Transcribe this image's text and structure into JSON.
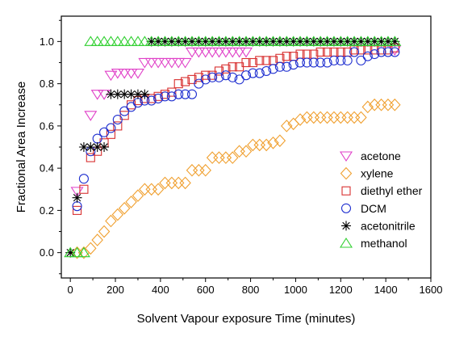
{
  "chart_data": {
    "type": "scatter",
    "title": "",
    "xlabel": "Solvent Vapour exposure Time (minutes)",
    "ylabel": "Fractional Area Increase",
    "xlim": [
      -40,
      1600
    ],
    "ylim": [
      -0.12,
      1.12
    ],
    "x_ticks": [
      0,
      200,
      400,
      600,
      800,
      1000,
      1200,
      1400,
      1600
    ],
    "y_ticks": [
      0.0,
      0.2,
      0.4,
      0.6,
      0.8,
      1.0
    ],
    "x_tick_labels": [
      "0",
      "200",
      "400",
      "600",
      "800",
      "1000",
      "1200",
      "1400",
      "1600"
    ],
    "y_tick_labels": [
      "0.0",
      "0.2",
      "0.4",
      "0.6",
      "0.8",
      "1.0"
    ],
    "grid": false,
    "legend_position": "right",
    "series": [
      {
        "name": "acetone",
        "marker": "triangle-down",
        "color": "#e040c8",
        "points": [
          [
            30,
            0.29
          ],
          [
            90,
            0.65
          ],
          [
            120,
            0.75
          ],
          [
            150,
            0.75
          ],
          [
            180,
            0.84
          ],
          [
            210,
            0.85
          ],
          [
            240,
            0.85
          ],
          [
            270,
            0.85
          ],
          [
            300,
            0.85
          ],
          [
            330,
            0.9
          ],
          [
            360,
            0.9
          ],
          [
            390,
            0.9
          ],
          [
            420,
            0.9
          ],
          [
            450,
            0.9
          ],
          [
            480,
            0.9
          ],
          [
            510,
            0.9
          ],
          [
            540,
            0.95
          ],
          [
            570,
            0.95
          ],
          [
            600,
            0.95
          ],
          [
            630,
            0.95
          ],
          [
            660,
            0.95
          ],
          [
            690,
            0.95
          ],
          [
            720,
            0.95
          ],
          [
            750,
            0.95
          ],
          [
            780,
            0.95
          ],
          [
            1440,
            0.96
          ]
        ]
      },
      {
        "name": "xylene",
        "marker": "diamond",
        "color": "#f0a030",
        "points": [
          [
            30,
            0.0
          ],
          [
            60,
            0.0
          ],
          [
            90,
            0.02
          ],
          [
            120,
            0.06
          ],
          [
            150,
            0.1
          ],
          [
            180,
            0.15
          ],
          [
            210,
            0.18
          ],
          [
            240,
            0.21
          ],
          [
            270,
            0.24
          ],
          [
            300,
            0.27
          ],
          [
            330,
            0.3
          ],
          [
            360,
            0.3
          ],
          [
            390,
            0.3
          ],
          [
            420,
            0.33
          ],
          [
            450,
            0.33
          ],
          [
            480,
            0.33
          ],
          [
            510,
            0.33
          ],
          [
            540,
            0.39
          ],
          [
            570,
            0.39
          ],
          [
            600,
            0.39
          ],
          [
            630,
            0.45
          ],
          [
            660,
            0.45
          ],
          [
            690,
            0.45
          ],
          [
            720,
            0.45
          ],
          [
            750,
            0.48
          ],
          [
            780,
            0.48
          ],
          [
            810,
            0.51
          ],
          [
            840,
            0.51
          ],
          [
            870,
            0.51
          ],
          [
            900,
            0.52
          ],
          [
            930,
            0.53
          ],
          [
            960,
            0.6
          ],
          [
            990,
            0.61
          ],
          [
            1020,
            0.63
          ],
          [
            1050,
            0.64
          ],
          [
            1080,
            0.64
          ],
          [
            1110,
            0.64
          ],
          [
            1140,
            0.64
          ],
          [
            1170,
            0.64
          ],
          [
            1200,
            0.64
          ],
          [
            1230,
            0.64
          ],
          [
            1260,
            0.64
          ],
          [
            1290,
            0.64
          ],
          [
            1320,
            0.69
          ],
          [
            1350,
            0.7
          ],
          [
            1380,
            0.7
          ],
          [
            1410,
            0.7
          ],
          [
            1440,
            0.7
          ]
        ]
      },
      {
        "name": "diethyl ether",
        "marker": "square",
        "color": "#d83030",
        "points": [
          [
            30,
            0.2
          ],
          [
            60,
            0.3
          ],
          [
            90,
            0.45
          ],
          [
            120,
            0.48
          ],
          [
            150,
            0.52
          ],
          [
            180,
            0.56
          ],
          [
            210,
            0.6
          ],
          [
            240,
            0.65
          ],
          [
            270,
            0.7
          ],
          [
            300,
            0.72
          ],
          [
            330,
            0.73
          ],
          [
            360,
            0.73
          ],
          [
            390,
            0.74
          ],
          [
            420,
            0.75
          ],
          [
            450,
            0.76
          ],
          [
            480,
            0.8
          ],
          [
            510,
            0.81
          ],
          [
            540,
            0.82
          ],
          [
            570,
            0.83
          ],
          [
            600,
            0.84
          ],
          [
            630,
            0.84
          ],
          [
            660,
            0.86
          ],
          [
            690,
            0.87
          ],
          [
            720,
            0.88
          ],
          [
            750,
            0.88
          ],
          [
            780,
            0.9
          ],
          [
            810,
            0.9
          ],
          [
            840,
            0.91
          ],
          [
            870,
            0.91
          ],
          [
            900,
            0.91
          ],
          [
            930,
            0.92
          ],
          [
            960,
            0.93
          ],
          [
            990,
            0.93
          ],
          [
            1020,
            0.94
          ],
          [
            1050,
            0.94
          ],
          [
            1080,
            0.94
          ],
          [
            1110,
            0.95
          ],
          [
            1140,
            0.95
          ],
          [
            1170,
            0.95
          ],
          [
            1200,
            0.95
          ],
          [
            1230,
            0.95
          ],
          [
            1260,
            0.96
          ],
          [
            1290,
            0.96
          ],
          [
            1320,
            0.96
          ],
          [
            1350,
            0.96
          ],
          [
            1380,
            0.96
          ],
          [
            1410,
            0.96
          ],
          [
            1440,
            0.97
          ]
        ]
      },
      {
        "name": "DCM",
        "marker": "circle",
        "color": "#2030d0",
        "points": [
          [
            30,
            0.22
          ],
          [
            60,
            0.35
          ],
          [
            90,
            0.48
          ],
          [
            120,
            0.54
          ],
          [
            150,
            0.57
          ],
          [
            180,
            0.59
          ],
          [
            210,
            0.63
          ],
          [
            240,
            0.67
          ],
          [
            270,
            0.69
          ],
          [
            300,
            0.71
          ],
          [
            330,
            0.72
          ],
          [
            360,
            0.72
          ],
          [
            390,
            0.73
          ],
          [
            420,
            0.74
          ],
          [
            450,
            0.74
          ],
          [
            480,
            0.75
          ],
          [
            510,
            0.75
          ],
          [
            540,
            0.75
          ],
          [
            570,
            0.8
          ],
          [
            600,
            0.82
          ],
          [
            630,
            0.83
          ],
          [
            660,
            0.83
          ],
          [
            690,
            0.84
          ],
          [
            720,
            0.83
          ],
          [
            750,
            0.82
          ],
          [
            780,
            0.84
          ],
          [
            810,
            0.85
          ],
          [
            840,
            0.85
          ],
          [
            870,
            0.86
          ],
          [
            900,
            0.87
          ],
          [
            930,
            0.88
          ],
          [
            960,
            0.88
          ],
          [
            990,
            0.89
          ],
          [
            1020,
            0.9
          ],
          [
            1050,
            0.9
          ],
          [
            1080,
            0.9
          ],
          [
            1110,
            0.9
          ],
          [
            1140,
            0.9
          ],
          [
            1170,
            0.91
          ],
          [
            1200,
            0.91
          ],
          [
            1230,
            0.91
          ],
          [
            1260,
            0.95
          ],
          [
            1290,
            0.91
          ],
          [
            1320,
            0.93
          ],
          [
            1350,
            0.94
          ],
          [
            1380,
            0.95
          ],
          [
            1410,
            0.95
          ],
          [
            1440,
            0.95
          ]
        ]
      },
      {
        "name": "acetonitrile",
        "marker": "asterisk",
        "color": "#000000",
        "points": [
          [
            0,
            0.0
          ],
          [
            30,
            0.26
          ],
          [
            60,
            0.5
          ],
          [
            90,
            0.5
          ],
          [
            120,
            0.5
          ],
          [
            150,
            0.5
          ],
          [
            180,
            0.75
          ],
          [
            210,
            0.75
          ],
          [
            240,
            0.75
          ],
          [
            270,
            0.75
          ],
          [
            300,
            0.75
          ],
          [
            330,
            0.75
          ],
          [
            360,
            1.0
          ],
          [
            390,
            1.0
          ],
          [
            420,
            1.0
          ],
          [
            450,
            1.0
          ],
          [
            480,
            1.0
          ],
          [
            510,
            1.0
          ],
          [
            540,
            1.0
          ],
          [
            570,
            1.0
          ],
          [
            600,
            1.0
          ],
          [
            630,
            1.0
          ],
          [
            660,
            1.0
          ],
          [
            690,
            1.0
          ],
          [
            720,
            1.0
          ],
          [
            750,
            1.0
          ],
          [
            780,
            1.0
          ],
          [
            810,
            1.0
          ],
          [
            840,
            1.0
          ],
          [
            870,
            1.0
          ],
          [
            900,
            1.0
          ],
          [
            930,
            1.0
          ],
          [
            960,
            1.0
          ],
          [
            990,
            1.0
          ],
          [
            1020,
            1.0
          ],
          [
            1050,
            1.0
          ],
          [
            1080,
            1.0
          ],
          [
            1110,
            1.0
          ],
          [
            1140,
            1.0
          ],
          [
            1170,
            1.0
          ],
          [
            1200,
            1.0
          ],
          [
            1230,
            1.0
          ],
          [
            1260,
            1.0
          ],
          [
            1290,
            1.0
          ],
          [
            1320,
            1.0
          ],
          [
            1350,
            1.0
          ],
          [
            1380,
            1.0
          ],
          [
            1410,
            1.0
          ],
          [
            1440,
            1.0
          ]
        ]
      },
      {
        "name": "methanol",
        "marker": "triangle-up",
        "color": "#30d030",
        "points": [
          [
            0,
            0.0
          ],
          [
            30,
            0.0
          ],
          [
            60,
            0.0
          ],
          [
            90,
            1.0
          ],
          [
            120,
            1.0
          ],
          [
            150,
            1.0
          ],
          [
            180,
            1.0
          ],
          [
            210,
            1.0
          ],
          [
            240,
            1.0
          ],
          [
            270,
            1.0
          ],
          [
            300,
            1.0
          ],
          [
            330,
            1.0
          ],
          [
            360,
            1.0
          ],
          [
            390,
            1.0
          ],
          [
            420,
            1.0
          ],
          [
            450,
            1.0
          ],
          [
            480,
            1.0
          ],
          [
            510,
            1.0
          ],
          [
            540,
            1.0
          ],
          [
            570,
            1.0
          ],
          [
            600,
            1.0
          ],
          [
            630,
            1.0
          ],
          [
            660,
            1.0
          ],
          [
            690,
            1.0
          ],
          [
            720,
            1.0
          ],
          [
            750,
            1.0
          ],
          [
            780,
            1.0
          ],
          [
            810,
            1.0
          ],
          [
            840,
            1.0
          ],
          [
            870,
            1.0
          ],
          [
            900,
            1.0
          ],
          [
            930,
            1.0
          ],
          [
            960,
            1.0
          ],
          [
            990,
            1.0
          ],
          [
            1020,
            1.0
          ],
          [
            1050,
            1.0
          ],
          [
            1080,
            1.0
          ],
          [
            1110,
            1.0
          ],
          [
            1140,
            1.0
          ],
          [
            1170,
            1.0
          ],
          [
            1200,
            1.0
          ],
          [
            1230,
            1.0
          ],
          [
            1260,
            1.0
          ],
          [
            1290,
            1.0
          ],
          [
            1320,
            1.0
          ],
          [
            1350,
            1.0
          ],
          [
            1380,
            1.0
          ],
          [
            1410,
            1.0
          ],
          [
            1440,
            1.0
          ]
        ]
      }
    ]
  }
}
